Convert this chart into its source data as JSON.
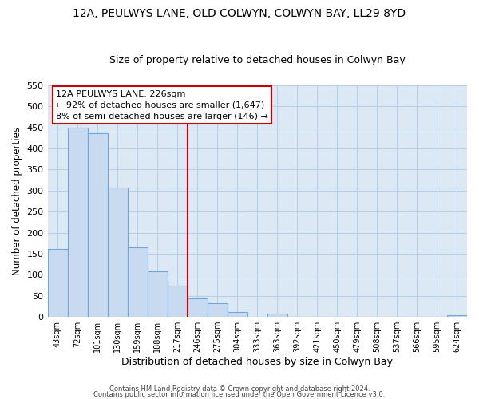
{
  "title": "12A, PEULWYS LANE, OLD COLWYN, COLWYN BAY, LL29 8YD",
  "subtitle": "Size of property relative to detached houses in Colwyn Bay",
  "xlabel": "Distribution of detached houses by size in Colwyn Bay",
  "ylabel": "Number of detached properties",
  "bar_labels": [
    "43sqm",
    "72sqm",
    "101sqm",
    "130sqm",
    "159sqm",
    "188sqm",
    "217sqm",
    "246sqm",
    "275sqm",
    "304sqm",
    "333sqm",
    "363sqm",
    "392sqm",
    "421sqm",
    "450sqm",
    "479sqm",
    "508sqm",
    "537sqm",
    "566sqm",
    "595sqm",
    "624sqm"
  ],
  "bar_values": [
    162,
    450,
    435,
    308,
    165,
    108,
    74,
    44,
    33,
    12,
    0,
    8,
    0,
    0,
    0,
    0,
    0,
    0,
    0,
    0,
    4
  ],
  "bar_color": "#c8daf0",
  "bar_edge_color": "#6fa8d8",
  "vline_color": "#cc0000",
  "annotation_title": "12A PEULWYS LANE: 226sqm",
  "annotation_line1": "← 92% of detached houses are smaller (1,647)",
  "annotation_line2": "8% of semi-detached houses are larger (146) →",
  "box_edge_color": "#cc0000",
  "ylim": [
    0,
    550
  ],
  "yticks": [
    0,
    50,
    100,
    150,
    200,
    250,
    300,
    350,
    400,
    450,
    500,
    550
  ],
  "footer1": "Contains HM Land Registry data © Crown copyright and database right 2024.",
  "footer2": "Contains public sector information licensed under the Open Government Licence v3.0.",
  "plot_bg_color": "#dce9f5",
  "grid_color": "#b8cfe8",
  "title_fontsize": 10,
  "subtitle_fontsize": 9,
  "xlabel_fontsize": 9,
  "ylabel_fontsize": 8.5,
  "vline_bar_index": 7
}
